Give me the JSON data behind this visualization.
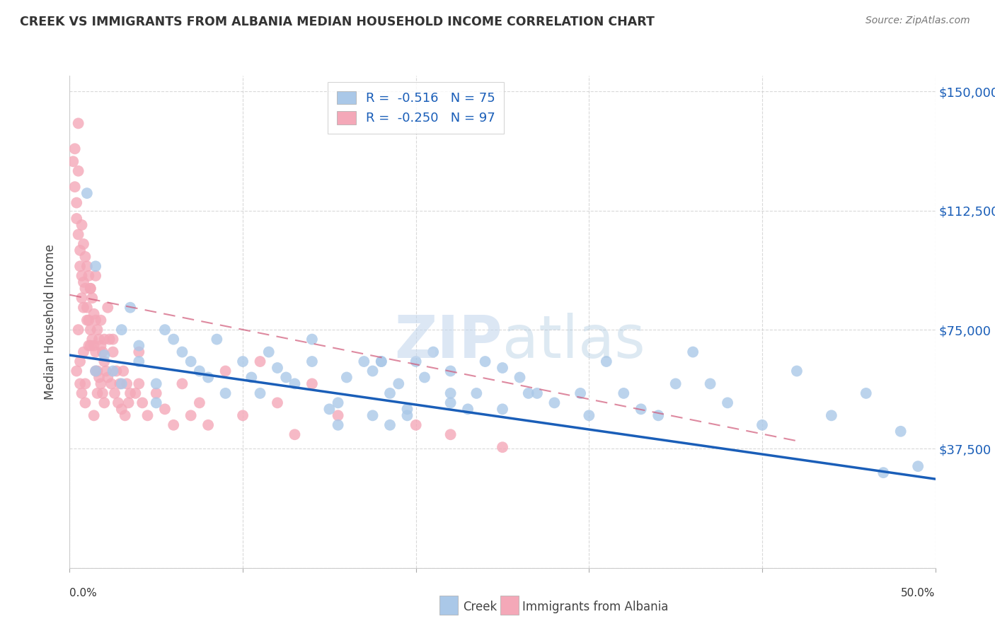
{
  "title": "CREEK VS IMMIGRANTS FROM ALBANIA MEDIAN HOUSEHOLD INCOME CORRELATION CHART",
  "source": "Source: ZipAtlas.com",
  "ylabel": "Median Household Income",
  "yticks": [
    0,
    37500,
    75000,
    112500,
    150000
  ],
  "ytick_labels": [
    "",
    "$37,500",
    "$75,000",
    "$112,500",
    "$150,000"
  ],
  "xlim": [
    0,
    0.5
  ],
  "ylim": [
    0,
    155000
  ],
  "creek_color": "#aac8e8",
  "albania_color": "#f4a8b8",
  "creek_line_color": "#1a5eb8",
  "albania_line_color": "#d05878",
  "creek_R": -0.516,
  "creek_N": 75,
  "albania_R": -0.25,
  "albania_N": 97,
  "creek_line_x": [
    0.0,
    0.5
  ],
  "creek_line_y": [
    67000,
    28000
  ],
  "albania_line_x": [
    0.0,
    0.42
  ],
  "albania_line_y": [
    86000,
    40000
  ],
  "creek_x": [
    0.01,
    0.015,
    0.02,
    0.025,
    0.03,
    0.03,
    0.035,
    0.04,
    0.04,
    0.05,
    0.05,
    0.055,
    0.06,
    0.065,
    0.07,
    0.075,
    0.08,
    0.085,
    0.09,
    0.1,
    0.105,
    0.11,
    0.115,
    0.12,
    0.125,
    0.13,
    0.14,
    0.14,
    0.15,
    0.155,
    0.16,
    0.17,
    0.175,
    0.18,
    0.185,
    0.19,
    0.195,
    0.2,
    0.21,
    0.22,
    0.22,
    0.23,
    0.24,
    0.25,
    0.26,
    0.27,
    0.28,
    0.3,
    0.31,
    0.32,
    0.33,
    0.34,
    0.35,
    0.36,
    0.37,
    0.38,
    0.4,
    0.42,
    0.44,
    0.46,
    0.47,
    0.48,
    0.49,
    0.295,
    0.155,
    0.175,
    0.185,
    0.265,
    0.205,
    0.18,
    0.195,
    0.22,
    0.235,
    0.25,
    0.015
  ],
  "creek_y": [
    118000,
    95000,
    67000,
    62000,
    75000,
    58000,
    82000,
    70000,
    65000,
    58000,
    52000,
    75000,
    72000,
    68000,
    65000,
    62000,
    60000,
    72000,
    55000,
    65000,
    60000,
    55000,
    68000,
    63000,
    60000,
    58000,
    65000,
    72000,
    50000,
    45000,
    60000,
    65000,
    62000,
    65000,
    55000,
    58000,
    50000,
    65000,
    68000,
    62000,
    55000,
    50000,
    65000,
    63000,
    60000,
    55000,
    52000,
    48000,
    65000,
    55000,
    50000,
    48000,
    58000,
    68000,
    58000,
    52000,
    45000,
    62000,
    48000,
    55000,
    30000,
    43000,
    32000,
    55000,
    52000,
    48000,
    45000,
    55000,
    60000,
    65000,
    48000,
    52000,
    55000,
    50000,
    62000
  ],
  "albania_x": [
    0.002,
    0.003,
    0.003,
    0.004,
    0.004,
    0.005,
    0.005,
    0.005,
    0.006,
    0.006,
    0.007,
    0.007,
    0.007,
    0.008,
    0.008,
    0.009,
    0.009,
    0.01,
    0.01,
    0.011,
    0.011,
    0.012,
    0.012,
    0.013,
    0.013,
    0.014,
    0.014,
    0.015,
    0.015,
    0.016,
    0.016,
    0.017,
    0.017,
    0.018,
    0.018,
    0.019,
    0.019,
    0.02,
    0.02,
    0.021,
    0.022,
    0.023,
    0.024,
    0.025,
    0.026,
    0.027,
    0.028,
    0.029,
    0.03,
    0.031,
    0.032,
    0.033,
    0.034,
    0.035,
    0.038,
    0.04,
    0.042,
    0.045,
    0.05,
    0.055,
    0.06,
    0.065,
    0.07,
    0.075,
    0.08,
    0.09,
    0.1,
    0.11,
    0.12,
    0.13,
    0.14,
    0.155,
    0.2,
    0.22,
    0.25,
    0.04,
    0.02,
    0.01,
    0.008,
    0.012,
    0.015,
    0.018,
    0.022,
    0.025,
    0.015,
    0.012,
    0.009,
    0.006,
    0.008,
    0.007,
    0.005,
    0.004,
    0.006,
    0.009,
    0.011,
    0.014,
    0.016
  ],
  "albania_y": [
    128000,
    120000,
    132000,
    115000,
    110000,
    105000,
    125000,
    140000,
    100000,
    95000,
    108000,
    92000,
    85000,
    102000,
    90000,
    98000,
    88000,
    95000,
    82000,
    92000,
    78000,
    88000,
    75000,
    85000,
    72000,
    80000,
    70000,
    78000,
    68000,
    75000,
    62000,
    72000,
    60000,
    70000,
    58000,
    68000,
    55000,
    65000,
    52000,
    62000,
    60000,
    72000,
    58000,
    68000,
    55000,
    62000,
    52000,
    58000,
    50000,
    62000,
    48000,
    58000,
    52000,
    55000,
    55000,
    58000,
    52000,
    48000,
    55000,
    50000,
    45000,
    58000,
    48000,
    52000,
    45000,
    62000,
    48000,
    65000,
    52000,
    42000,
    58000,
    48000,
    45000,
    42000,
    38000,
    68000,
    72000,
    78000,
    82000,
    88000,
    92000,
    78000,
    82000,
    72000,
    62000,
    70000,
    58000,
    65000,
    68000,
    55000,
    75000,
    62000,
    58000,
    52000,
    70000,
    48000,
    55000
  ]
}
